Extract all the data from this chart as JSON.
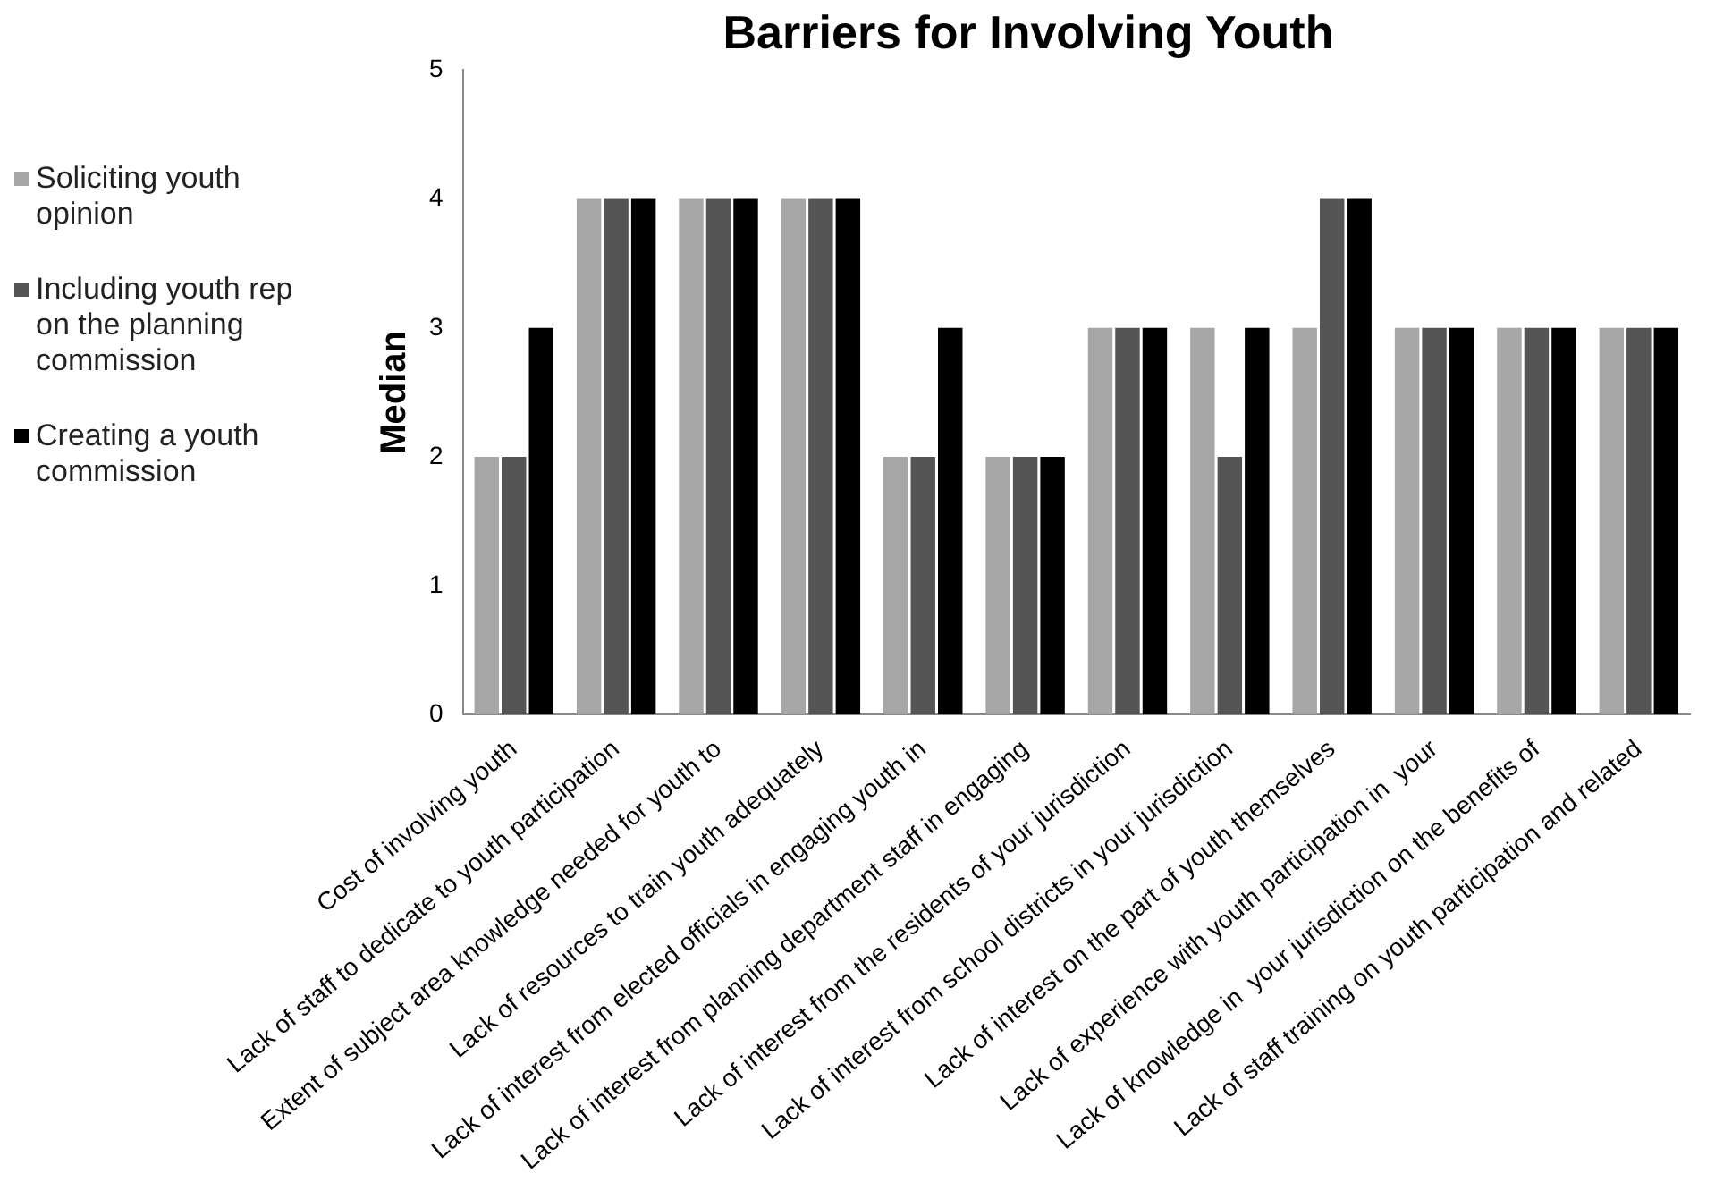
{
  "chart_data": {
    "type": "bar",
    "title": "Barriers for Involving Youth",
    "ylabel": "Median",
    "categories": [
      "Cost of involving youth",
      "Lack of staff to dedicate to youth participation",
      "Extent of subject area knowledge needed for youth to",
      "Lack of resources to train youth adequately",
      "Lack of interest from elected officials in engaging youth in",
      "Lack of interest from planning department staff in engaging",
      "Lack of interest from the residents of your jurisdiction",
      "Lack of interest from school districts in your jurisdiction",
      "Lack of interest on the part of youth themselves",
      "Lack of experience with youth participation in  your",
      "Lack of knowledge in  your jurisdiction on the benefits of",
      "Lack of staff training on youth participation and related"
    ],
    "series": [
      {
        "name": "Soliciting youth opinion",
        "color": "#a6a6a6",
        "values": [
          2,
          4,
          4,
          4,
          2,
          2,
          3,
          3,
          3,
          3,
          3,
          3
        ]
      },
      {
        "name": "Including youth rep on the planning commission",
        "color": "#555555",
        "values": [
          2,
          4,
          4,
          4,
          2,
          2,
          3,
          2,
          4,
          3,
          3,
          3
        ]
      },
      {
        "name": "Creating a youth commission",
        "color": "#000000",
        "values": [
          3,
          4,
          4,
          4,
          3,
          2,
          3,
          3,
          4,
          3,
          3,
          3
        ]
      }
    ],
    "ylim": [
      0,
      5
    ],
    "yticks": [
      0,
      1,
      2,
      3,
      4,
      5
    ],
    "grid": false,
    "legend": "left"
  }
}
